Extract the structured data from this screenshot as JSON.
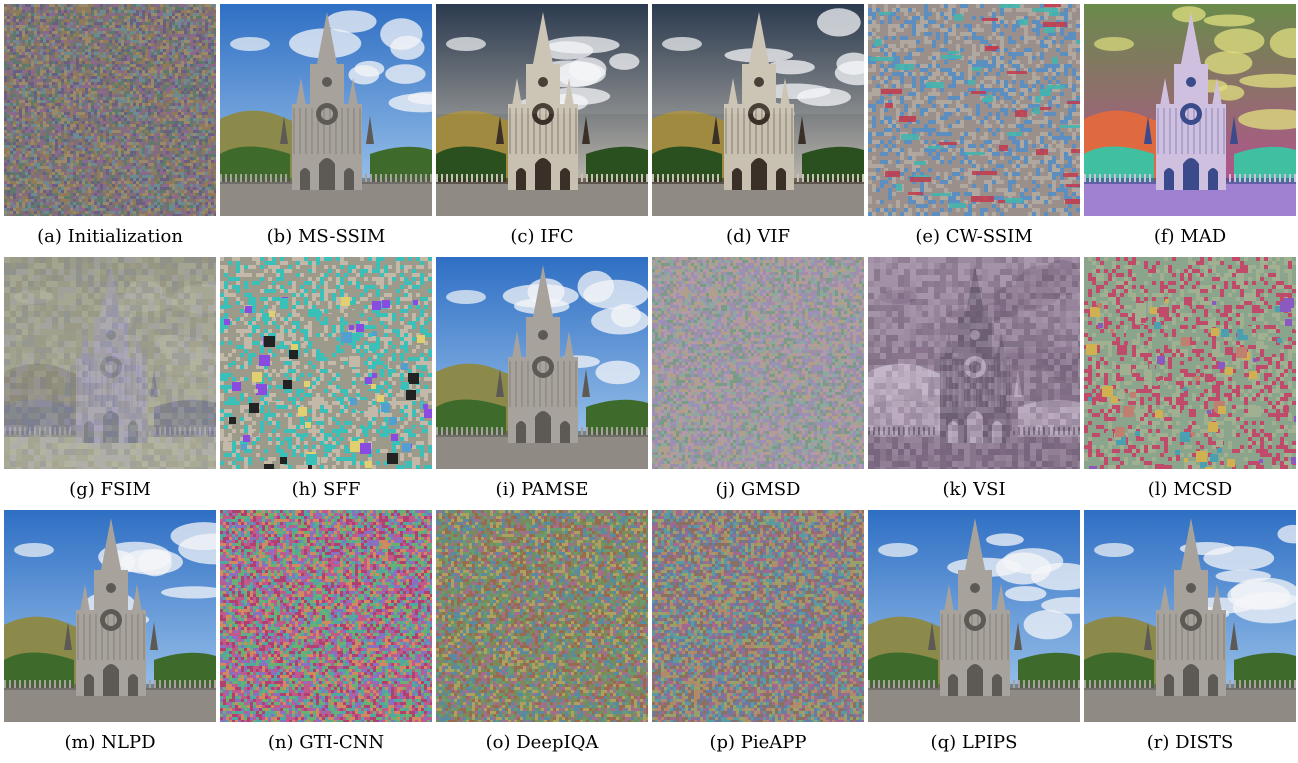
{
  "figure": {
    "panels": [
      {
        "label": "(a) Initialization",
        "kind": "noise",
        "palette": [
          "#7d6f72",
          "#5f7a6c",
          "#8a6a8c",
          "#6c8a8f",
          "#9a8a6a",
          "#6a5f80",
          "#8f7a5a"
        ]
      },
      {
        "label": "(b) MS-SSIM",
        "kind": "church"
      },
      {
        "label": "(c) IFC",
        "kind": "church-harsh"
      },
      {
        "label": "(d) VIF",
        "kind": "church-harsh"
      },
      {
        "label": "(e) CW-SSIM",
        "kind": "noise-patch",
        "palette": [
          "#3fb6b0",
          "#c23a4b",
          "#9a8f8a",
          "#5c8fbf",
          "#d45a6e",
          "#7ac6b8",
          "#b0a79f"
        ]
      },
      {
        "label": "(f) MAD",
        "kind": "church-psyche"
      },
      {
        "label": "(g) FSIM",
        "kind": "church-ghost",
        "palette": [
          "#9a9c87",
          "#b3b4a0",
          "#7c7f8f",
          "#a8a3b8",
          "#8d8a7a"
        ]
      },
      {
        "label": "(h) SFF",
        "kind": "noise-block",
        "palette": [
          "#9c9a8a",
          "#3ac0b8",
          "#8a4be0",
          "#e0d070",
          "#222222",
          "#c4b8a8",
          "#52a0d0"
        ]
      },
      {
        "label": "(i) PAMSE",
        "kind": "church"
      },
      {
        "label": "(j) GMSD",
        "kind": "noise",
        "palette": [
          "#a08ea6",
          "#8ea8a0",
          "#b0a08a",
          "#9a90b8",
          "#7c9a8a",
          "#b49aa6"
        ]
      },
      {
        "label": "(k) VSI",
        "kind": "church-ghost",
        "palette": [
          "#9c8aa0",
          "#7d6a82",
          "#b5a6ba",
          "#6c5f74",
          "#c4b6c8"
        ]
      },
      {
        "label": "(l) MCSD",
        "kind": "noise-block",
        "palette": [
          "#8ba48c",
          "#c04a6a",
          "#4aa0b0",
          "#d0b050",
          "#8a5ac0",
          "#a0b090",
          "#c08070"
        ]
      },
      {
        "label": "(m) NLPD",
        "kind": "church"
      },
      {
        "label": "(n) GTI-CNN",
        "kind": "noise",
        "palette": [
          "#c05a8a",
          "#50a8a0",
          "#8a70c0",
          "#d08a60",
          "#6ab070",
          "#b04070"
        ]
      },
      {
        "label": "(o) DeepIQA",
        "kind": "noise",
        "palette": [
          "#7a8a5a",
          "#a0708a",
          "#5a8aa0",
          "#b0a060",
          "#6a9a70",
          "#9a6a50"
        ]
      },
      {
        "label": "(p) PieAPP",
        "kind": "noise",
        "palette": [
          "#8a7060",
          "#5a9aa0",
          "#a06a90",
          "#9aa06a",
          "#6a7aa0",
          "#b08a6a"
        ]
      },
      {
        "label": "(q) LPIPS",
        "kind": "church"
      },
      {
        "label": "(r) DISTS",
        "kind": "church"
      }
    ],
    "colors": {
      "sky_top": "#2f6fc4",
      "sky_bottom": "#a9cdef",
      "cloud": "#f4f6f8",
      "stone": "#a7a39c",
      "stone_dark": "#5d5a55",
      "hill": "#8c8a4a",
      "foliage": "#3e6a2c",
      "plaza": "#8f8a84"
    }
  }
}
